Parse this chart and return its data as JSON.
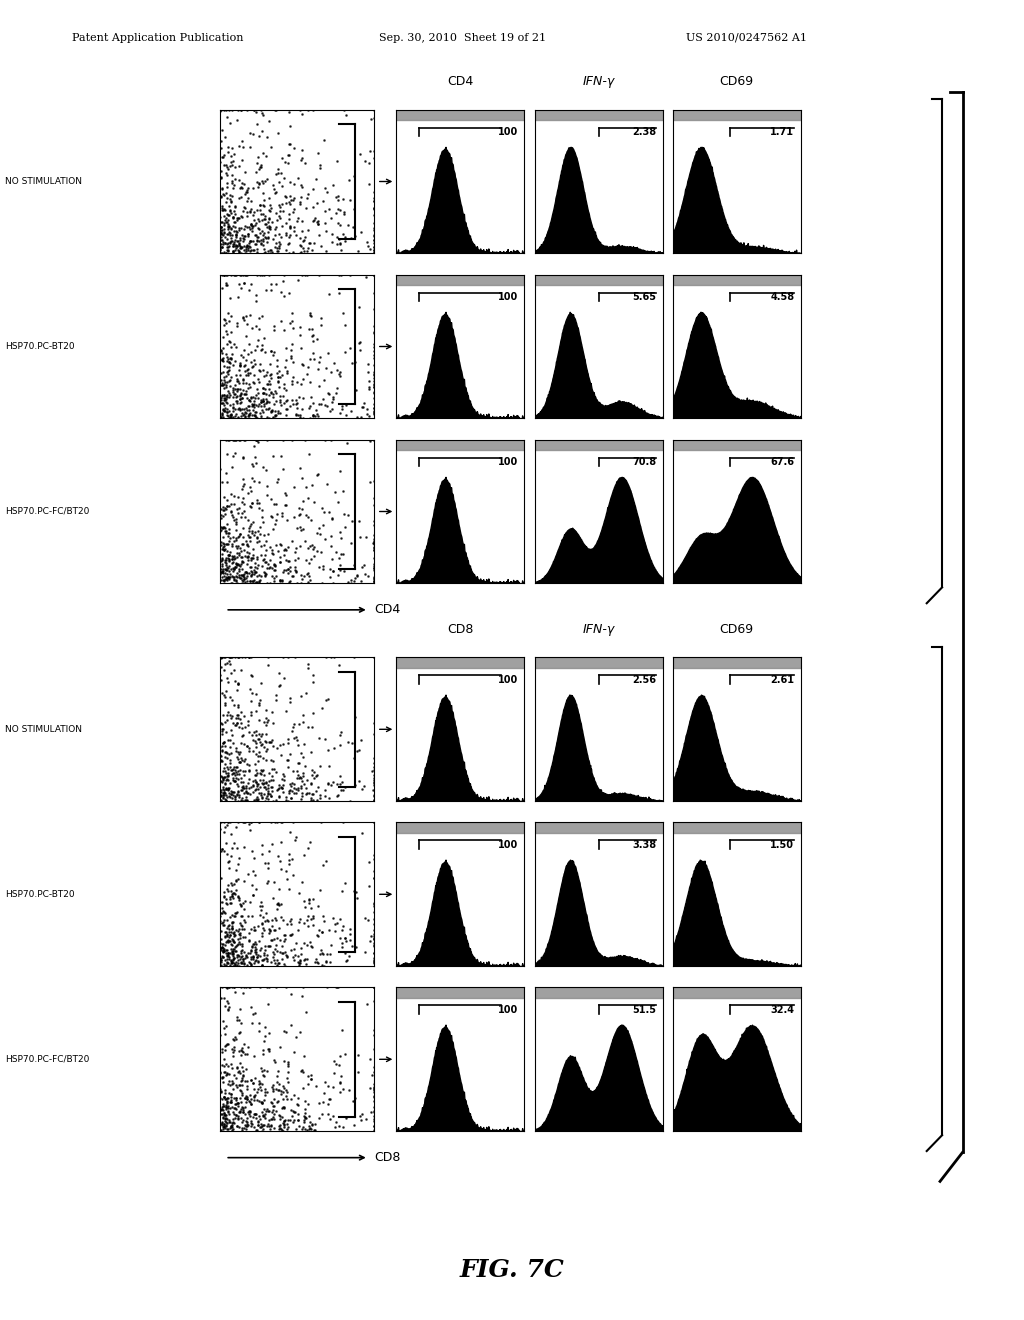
{
  "header_left": "Patent Application Publication",
  "header_middle": "Sep. 30, 2010  Sheet 19 of 21",
  "header_right": "US 2010/0247562 A1",
  "figure_label": "FIG. 7C",
  "top_section": {
    "col_headers": [
      "CD4",
      "IFN-γ",
      "CD69"
    ],
    "row_labels": [
      "NO STIMULATION",
      "HSP70.PC-BT20",
      "HSP70.PC-FC/BT20"
    ],
    "x_axis_label": "CD4",
    "values": [
      [
        "100",
        "2.38",
        "1.71"
      ],
      [
        "100",
        "5.65",
        "4.58"
      ],
      [
        "100",
        "70.8",
        "67.6"
      ]
    ]
  },
  "bottom_section": {
    "col_headers": [
      "CD8",
      "IFN-γ",
      "CD69"
    ],
    "row_labels": [
      "NO STIMULATION",
      "HSP70.PC-BT20",
      "HSP70.PC-FC/BT20"
    ],
    "x_axis_label": "CD8",
    "values": [
      [
        "100",
        "2.56",
        "2.61"
      ],
      [
        "100",
        "3.38",
        "1.50"
      ],
      [
        "100",
        "51.5",
        "32.4"
      ]
    ]
  },
  "bg_color": "#ffffff",
  "plot_bg": "#ffffff",
  "hist_color": "#000000",
  "scatter_color": "#000000"
}
